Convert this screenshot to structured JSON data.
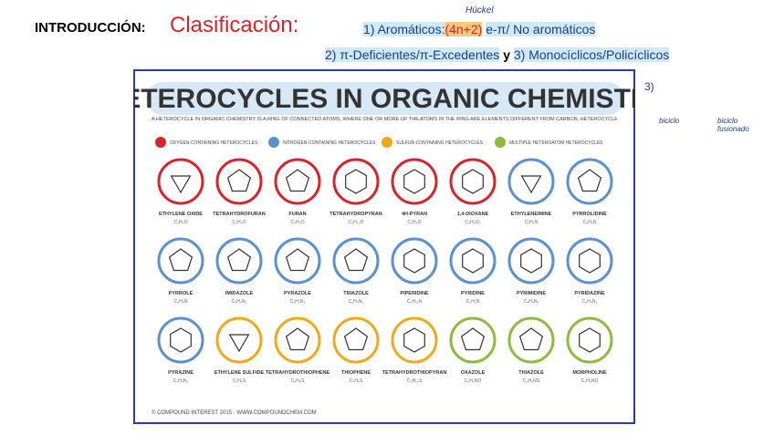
{
  "header": {
    "intro": "INTRODUCCIÓN:",
    "title": "Clasificación:",
    "line1": {
      "a": "1) Aromáticos:",
      "b": "(4n+2)",
      "c": "e-π/ No aromáticos"
    },
    "line2": {
      "a": "2) π-Deficientes/π-Excedentes",
      "b": "y",
      "c": "3) Monocíclicos/Policíclicos"
    }
  },
  "notes": {
    "huckel": "Hückel",
    "n3": "3)",
    "bic1": "biciclo",
    "bic2": "biciclo fusionado"
  },
  "poster": {
    "title": "HETEROCYCLES IN ORGANIC CHEMISTRY",
    "intro": "A HETEROCYCLE IN ORGANIC CHEMISTRY IS A RING OF CONNECTED ATOMS, WHERE ONE OR MORE OF THE ATOMS IN THE RING ARE ELEMENTS DIFFERENT FROM CARBON. HETEROCYCLES WITH OXYGEN, NITROGEN, AND SULFUR ARE THE MOST PREVALENT IN NATURE, MAKING UP COMMON COMPOUNDS.",
    "legend": [
      {
        "label": "OXYGEN-CONTAINING HETEROCYCLES",
        "color": "#d9232a"
      },
      {
        "label": "NITROGEN-CONTAINING HETEROCYCLES",
        "color": "#5b8fd0"
      },
      {
        "label": "SULFUR-CONTAINING HETEROCYCLES",
        "color": "#f0a81c"
      },
      {
        "label": "MULTIPLE HETEROATOM HETEROCYCLES",
        "color": "#8dbb3b"
      }
    ],
    "compounds": [
      {
        "name": "ETHYLENE OXIDE",
        "formula": "C₂H₄O",
        "group": 0
      },
      {
        "name": "TETRAHYDROFURAN",
        "formula": "C₄H₈O",
        "group": 0
      },
      {
        "name": "FURAN",
        "formula": "C₄H₄O",
        "group": 0
      },
      {
        "name": "TETRAHYDROPYRAN",
        "formula": "C₅H₁₀O",
        "group": 0
      },
      {
        "name": "4H-PYRAN",
        "formula": "C₅H₆O",
        "group": 0
      },
      {
        "name": "1,4-DIOXANE",
        "formula": "C₄H₈O₂",
        "group": 0
      },
      {
        "name": "ETHYLENEIMINE",
        "formula": "C₂H₅N",
        "group": 1
      },
      {
        "name": "PYRROLIDINE",
        "formula": "C₄H₉N",
        "group": 1
      },
      {
        "name": "PYRROLE",
        "formula": "C₄H₅N",
        "group": 1
      },
      {
        "name": "IMIDAZOLE",
        "formula": "C₃H₄N₂",
        "group": 1
      },
      {
        "name": "PYRAZOLE",
        "formula": "C₃H₄N₂",
        "group": 1
      },
      {
        "name": "TRIAZOLE",
        "formula": "C₂H₃N₃",
        "group": 1
      },
      {
        "name": "PIPERIDINE",
        "formula": "C₅H₁₁N",
        "group": 1
      },
      {
        "name": "PYRIDINE",
        "formula": "C₅H₅N",
        "group": 1
      },
      {
        "name": "PYRIMIDINE",
        "formula": "C₄H₄N₂",
        "group": 1
      },
      {
        "name": "PYRIDAZINE",
        "formula": "C₄H₄N₂",
        "group": 1
      },
      {
        "name": "PYRAZINE",
        "formula": "C₄H₄N₂",
        "group": 1
      },
      {
        "name": "ETHYLENE SULFIDE",
        "formula": "C₂H₄S",
        "group": 2
      },
      {
        "name": "TETRAHYDROTHIOPHENE",
        "formula": "C₄H₈S",
        "group": 2
      },
      {
        "name": "THIOPHENE",
        "formula": "C₄H₄S",
        "group": 2
      },
      {
        "name": "TETRAHYDROTHIOPYRAN",
        "formula": "C₅H₁₀S",
        "group": 2
      },
      {
        "name": "OXAZOLE",
        "formula": "C₃H₃NO",
        "group": 3
      },
      {
        "name": "THIAZOLE",
        "formula": "C₃H₃NS",
        "group": 3
      },
      {
        "name": "MORPHOLINE",
        "formula": "C₄H₉NO",
        "group": 3
      }
    ],
    "footer": "© COMPOUND INTEREST 2015 · WWW.COMPOUNDCHEM.COM"
  }
}
